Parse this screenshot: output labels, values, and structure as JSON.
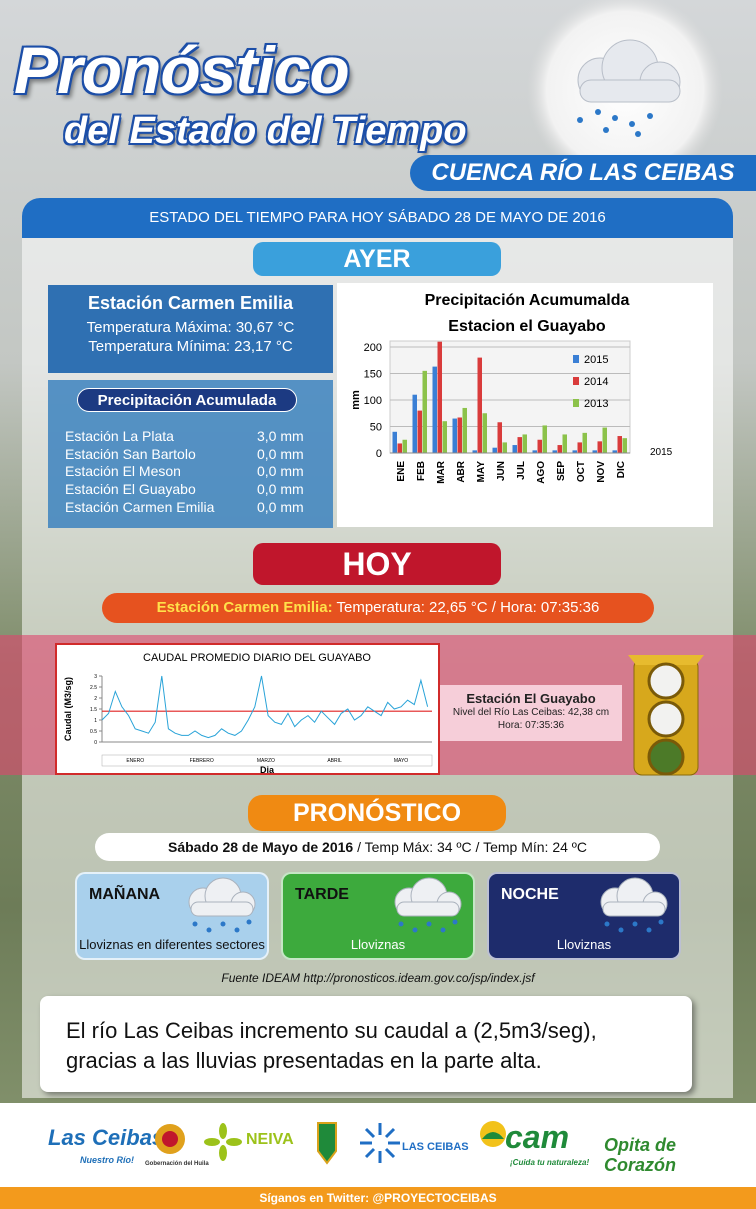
{
  "header": {
    "title": "Pronóstico",
    "subtitle": "del Estado del Tiempo",
    "region": "CUENCA RÍO LAS CEIBAS"
  },
  "banner": "ESTADO DEL TIEMPO PARA HOY SÁBADO 28 DE MAYO DE 2016",
  "ayer": {
    "heading": "AYER",
    "station": {
      "name": "Estación Carmen Emilia",
      "lines": [
        "Temperatura Máxima: 30,67 °C",
        "Temperatura Mínima: 23,17 °C"
      ]
    },
    "precipitation": {
      "heading": "Precipitación Acumulada",
      "rows": [
        [
          "Estación La Plata",
          "3,0 mm"
        ],
        [
          "Estación San Bartolo",
          "0,0 mm"
        ],
        [
          "Estación El Meson",
          "0,0 mm"
        ],
        [
          "Estación El Guayabo",
          "0,0 mm"
        ],
        [
          "Estación Carmen Emilia",
          "0,0 mm"
        ]
      ]
    }
  },
  "chart_data": [
    {
      "type": "bar",
      "title": "Precipitación Acumumalda",
      "subtitle": "Estacion el Guayabo",
      "y_label": "mm",
      "depth_axis_label": "2015",
      "categories": [
        "ENE",
        "FEB",
        "MAR",
        "ABR",
        "MAY",
        "JUN",
        "JUL",
        "AGO",
        "SEP",
        "OCT",
        "NOV",
        "DIC"
      ],
      "series": [
        {
          "name": "2015",
          "color": "#3a7fd5",
          "values": [
            40,
            110,
            163,
            65,
            5,
            10,
            15,
            5,
            5,
            5,
            5,
            5
          ]
        },
        {
          "name": "2014",
          "color": "#d93b3b",
          "values": [
            18,
            80,
            210,
            67,
            180,
            58,
            30,
            25,
            15,
            20,
            22,
            32
          ]
        },
        {
          "name": "2013",
          "color": "#8cc24a",
          "values": [
            25,
            155,
            60,
            85,
            75,
            20,
            35,
            52,
            35,
            38,
            48,
            28
          ]
        }
      ],
      "ylim": [
        0,
        200
      ],
      "yticks": [
        0,
        50,
        100,
        150,
        200
      ],
      "grid": true
    },
    {
      "type": "line",
      "title": "CAUDAL PROMEDIO DIARIO DEL GUAYABO",
      "x_label": "Dia",
      "y_label": "Caudal (M3/sg)",
      "x": [
        1,
        4,
        7,
        10,
        13,
        16,
        19,
        22,
        25,
        28,
        31,
        34,
        37,
        40,
        43,
        46,
        49,
        52,
        55,
        58,
        61,
        64,
        67,
        70,
        73,
        76,
        79,
        82,
        85,
        88,
        91,
        94,
        97,
        100,
        103,
        106,
        109,
        112,
        115,
        118,
        121,
        124,
        127,
        130,
        133,
        136,
        139,
        142,
        145,
        148
      ],
      "series": [
        {
          "name": "Caudal",
          "color": "#29a3d8",
          "values": [
            1.0,
            1.3,
            2.3,
            1.6,
            1.2,
            0.6,
            0.5,
            0.4,
            0.9,
            3.0,
            0.6,
            0.4,
            0.3,
            0.3,
            0.5,
            0.3,
            0.2,
            0.3,
            0.6,
            0.4,
            0.3,
            0.5,
            1.0,
            1.6,
            3.0,
            1.2,
            0.9,
            0.8,
            1.3,
            0.7,
            1.0,
            1.2,
            0.9,
            1.4,
            1.1,
            0.8,
            1.3,
            1.5,
            1.0,
            1.2,
            1.6,
            1.4,
            1.2,
            1.8,
            1.5,
            1.6,
            1.9,
            1.7,
            2.8,
            1.6
          ]
        }
      ],
      "reference_line": {
        "value": 1.4,
        "color": "#e02020"
      },
      "xlim": [
        1,
        150
      ],
      "xticks": [
        {
          "value": 16,
          "label": "ENERO"
        },
        {
          "value": 46,
          "label": "FEBRERO"
        },
        {
          "value": 75,
          "label": "MARZO"
        },
        {
          "value": 106,
          "label": "ABRIL"
        },
        {
          "value": 136,
          "label": "MAYO"
        }
      ],
      "ylim": [
        0,
        3
      ],
      "yticks": [
        0,
        0.5,
        1,
        1.5,
        2,
        2.5,
        3
      ]
    }
  ],
  "hoy": {
    "heading": "HOY",
    "station_label": "Estación Carmen Emilia:",
    "reading": "Temperatura:  22,65 °C  / Hora: 07:35:36"
  },
  "river": {
    "station": "Estación  El Guayabo",
    "lines": [
      "Nivel del Río  Las Ceibas: 42,38 cm",
      "Hora: 07:35:36"
    ]
  },
  "forecast": {
    "heading": "PRONÓSTICO",
    "date": "Sábado 28 de Mayo de 2016",
    "temps": " / Temp Máx:  34 ºC   /   Temp Mín:  24 ºC",
    "periods": [
      {
        "name": "MAÑANA",
        "text": "Lloviznas  en diferentes  sectores"
      },
      {
        "name": "TARDE",
        "text": "Lloviznas"
      },
      {
        "name": "NOCHE",
        "text": "Lloviznas"
      }
    ],
    "source": "Fuente IDEAM  http://pronosticos.ideam.gov.co/jsp/index.jsf"
  },
  "note": "El río Las Ceibas incremento su caudal a (2,5m3/seg), gracias a las lluvias presentadas en la parte alta.",
  "logos": [
    "Las Ceibas",
    "Nuestro Río!",
    "Gobernación del Huila",
    "NEIVA",
    "LAS CEIBAS",
    "cam",
    "¡Cuida tu naturaleza!",
    "Opita de Corazón"
  ],
  "footer": "Síganos en Twitter: @PROYECTOCEIBAS"
}
